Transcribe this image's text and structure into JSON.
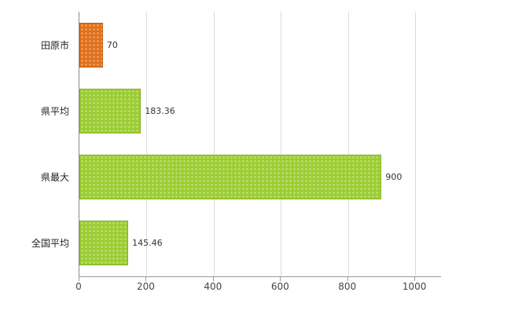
{
  "chart_data": {
    "type": "bar",
    "orientation": "horizontal",
    "title": "",
    "categories": [
      "田原市",
      "県平均",
      "県最大",
      "全国平均"
    ],
    "values": [
      70,
      183.36,
      900,
      145.46
    ],
    "value_labels": [
      "70",
      "183.36",
      "900",
      "145.46"
    ],
    "bar_colors": [
      "#e1701a",
      "#9bcd32",
      "#9bcd32",
      "#9bcd32"
    ],
    "bar_border_colors": [
      "#c05e12",
      "#85b425",
      "#85b425",
      "#85b425"
    ],
    "x_ticks": [
      0,
      200,
      400,
      600,
      800,
      1000
    ],
    "x_tick_labels": [
      "0",
      "200",
      "400",
      "600",
      "800",
      "1000"
    ],
    "xlim": [
      0,
      1077
    ],
    "grid": true,
    "legend": false
  },
  "colors": {
    "axis": "#8c8c8c",
    "gridline": "#dcdcdc",
    "tick_label": "#444444",
    "category_label": "#222222",
    "value_label": "#333333",
    "background": "#ffffff"
  }
}
